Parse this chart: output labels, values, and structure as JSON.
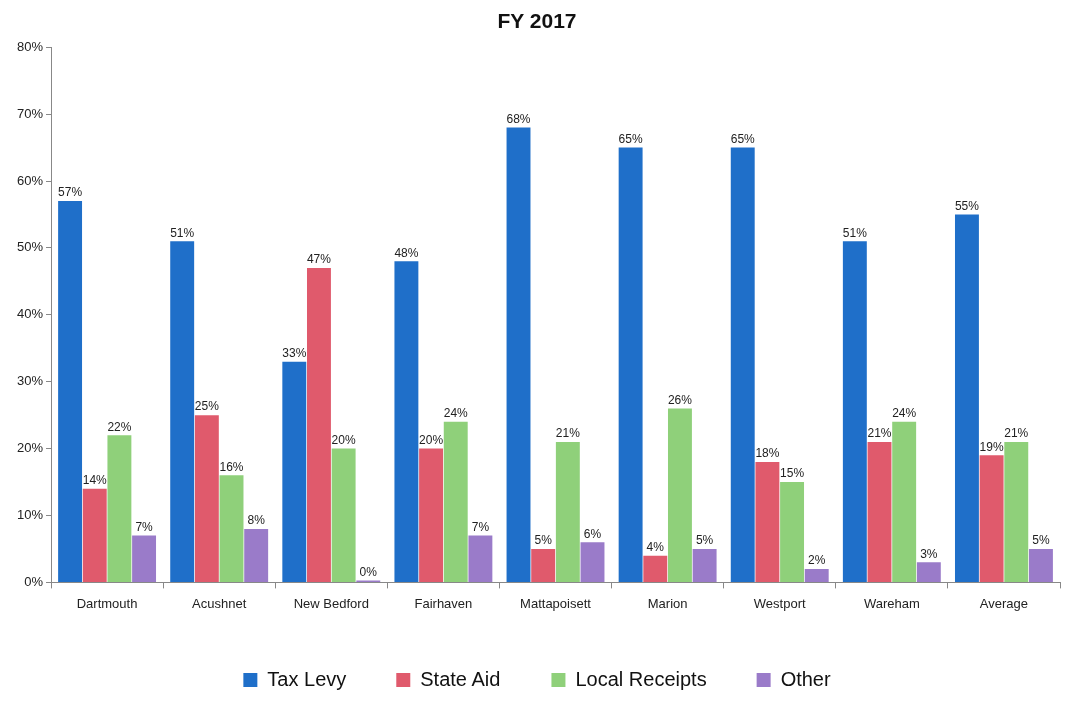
{
  "chart_data": {
    "type": "bar",
    "title": "FY 2017",
    "categories": [
      "Dartmouth",
      "Acushnet",
      "New Bedford",
      "Fairhaven",
      "Mattapoisett",
      "Marion",
      "Westport",
      "Wareham",
      "Average"
    ],
    "series": [
      {
        "name": "Tax Levy",
        "color": "#1f6fc9",
        "values": [
          57,
          51,
          33,
          48,
          68,
          65,
          65,
          51,
          55
        ],
        "value_labels": [
          "57%",
          "51%",
          "33%",
          "48%",
          "68%",
          "65%",
          "65%",
          "51%",
          "55%"
        ]
      },
      {
        "name": "State Aid",
        "color": "#e05a6c",
        "values": [
          14,
          25,
          47,
          20,
          5,
          4,
          18,
          21,
          19
        ],
        "value_labels": [
          "14%",
          "25%",
          "47%",
          "20%",
          "5%",
          "4%",
          "18%",
          "21%",
          "19%"
        ]
      },
      {
        "name": "Local Receipts",
        "color": "#8fd07a",
        "values": [
          22,
          16,
          20,
          24,
          21,
          26,
          15,
          24,
          21
        ],
        "value_labels": [
          "22%",
          "16%",
          "20%",
          "24%",
          "21%",
          "26%",
          "15%",
          "24%",
          "21%"
        ]
      },
      {
        "name": "Other",
        "color": "#9a7bc9",
        "values": [
          7,
          8,
          0,
          7,
          6,
          5,
          2,
          3,
          5
        ],
        "value_labels": [
          "7%",
          "8%",
          "0%",
          "7%",
          "6%",
          "5%",
          "2%",
          "3%",
          "5%"
        ]
      }
    ],
    "ylim": [
      0,
      80
    ],
    "yticks": [
      {
        "value": 0,
        "label": "0%"
      },
      {
        "value": 10,
        "label": "10%"
      },
      {
        "value": 20,
        "label": "20%"
      },
      {
        "value": 30,
        "label": "30%"
      },
      {
        "value": 40,
        "label": "40%"
      },
      {
        "value": 50,
        "label": "50%"
      },
      {
        "value": 60,
        "label": "60%"
      },
      {
        "value": 70,
        "label": "70%"
      },
      {
        "value": 80,
        "label": "80%"
      }
    ],
    "grid": false,
    "legend": "bottom"
  }
}
